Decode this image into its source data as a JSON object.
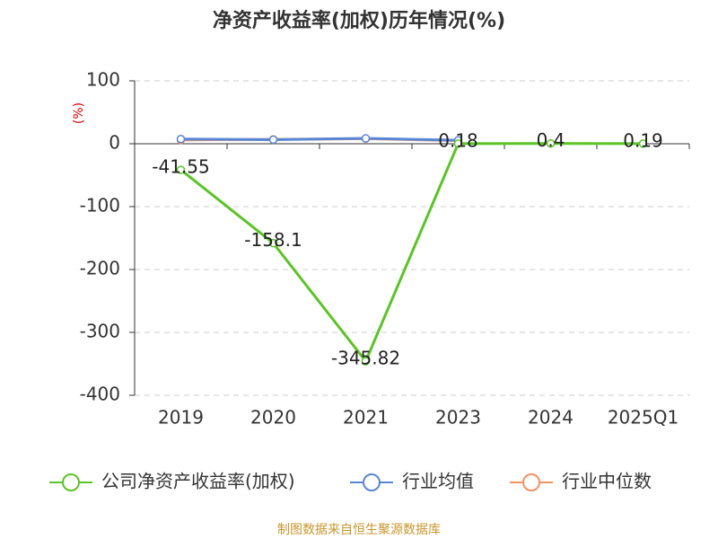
{
  "chart_data": {
    "type": "line",
    "title": "净资产收益率(加权)历年情况(%)",
    "y_label": "(%)",
    "source": "制图数据来自恒生聚源数据库",
    "categories": [
      "2019",
      "2020",
      "2021",
      "2023",
      "2024",
      "2025Q1"
    ],
    "series": [
      {
        "name": "公司净资产收益率(加权)",
        "color": "#5cc427",
        "values": [
          -41.55,
          -158.1,
          -345.82,
          0.18,
          0.4,
          0.19
        ],
        "labels": true
      },
      {
        "name": "行业均值",
        "color": "#5a86d6",
        "values": [
          7.5,
          6.5,
          8.5,
          5.5,
          null,
          null
        ]
      },
      {
        "name": "行业中位数",
        "color": "#f39263",
        "values": [
          6,
          7,
          8,
          5,
          null,
          null
        ]
      }
    ],
    "ylim": [
      -400,
      100
    ],
    "yticks": [
      -400,
      -300,
      -200,
      -100,
      0,
      100
    ],
    "grid": true
  }
}
